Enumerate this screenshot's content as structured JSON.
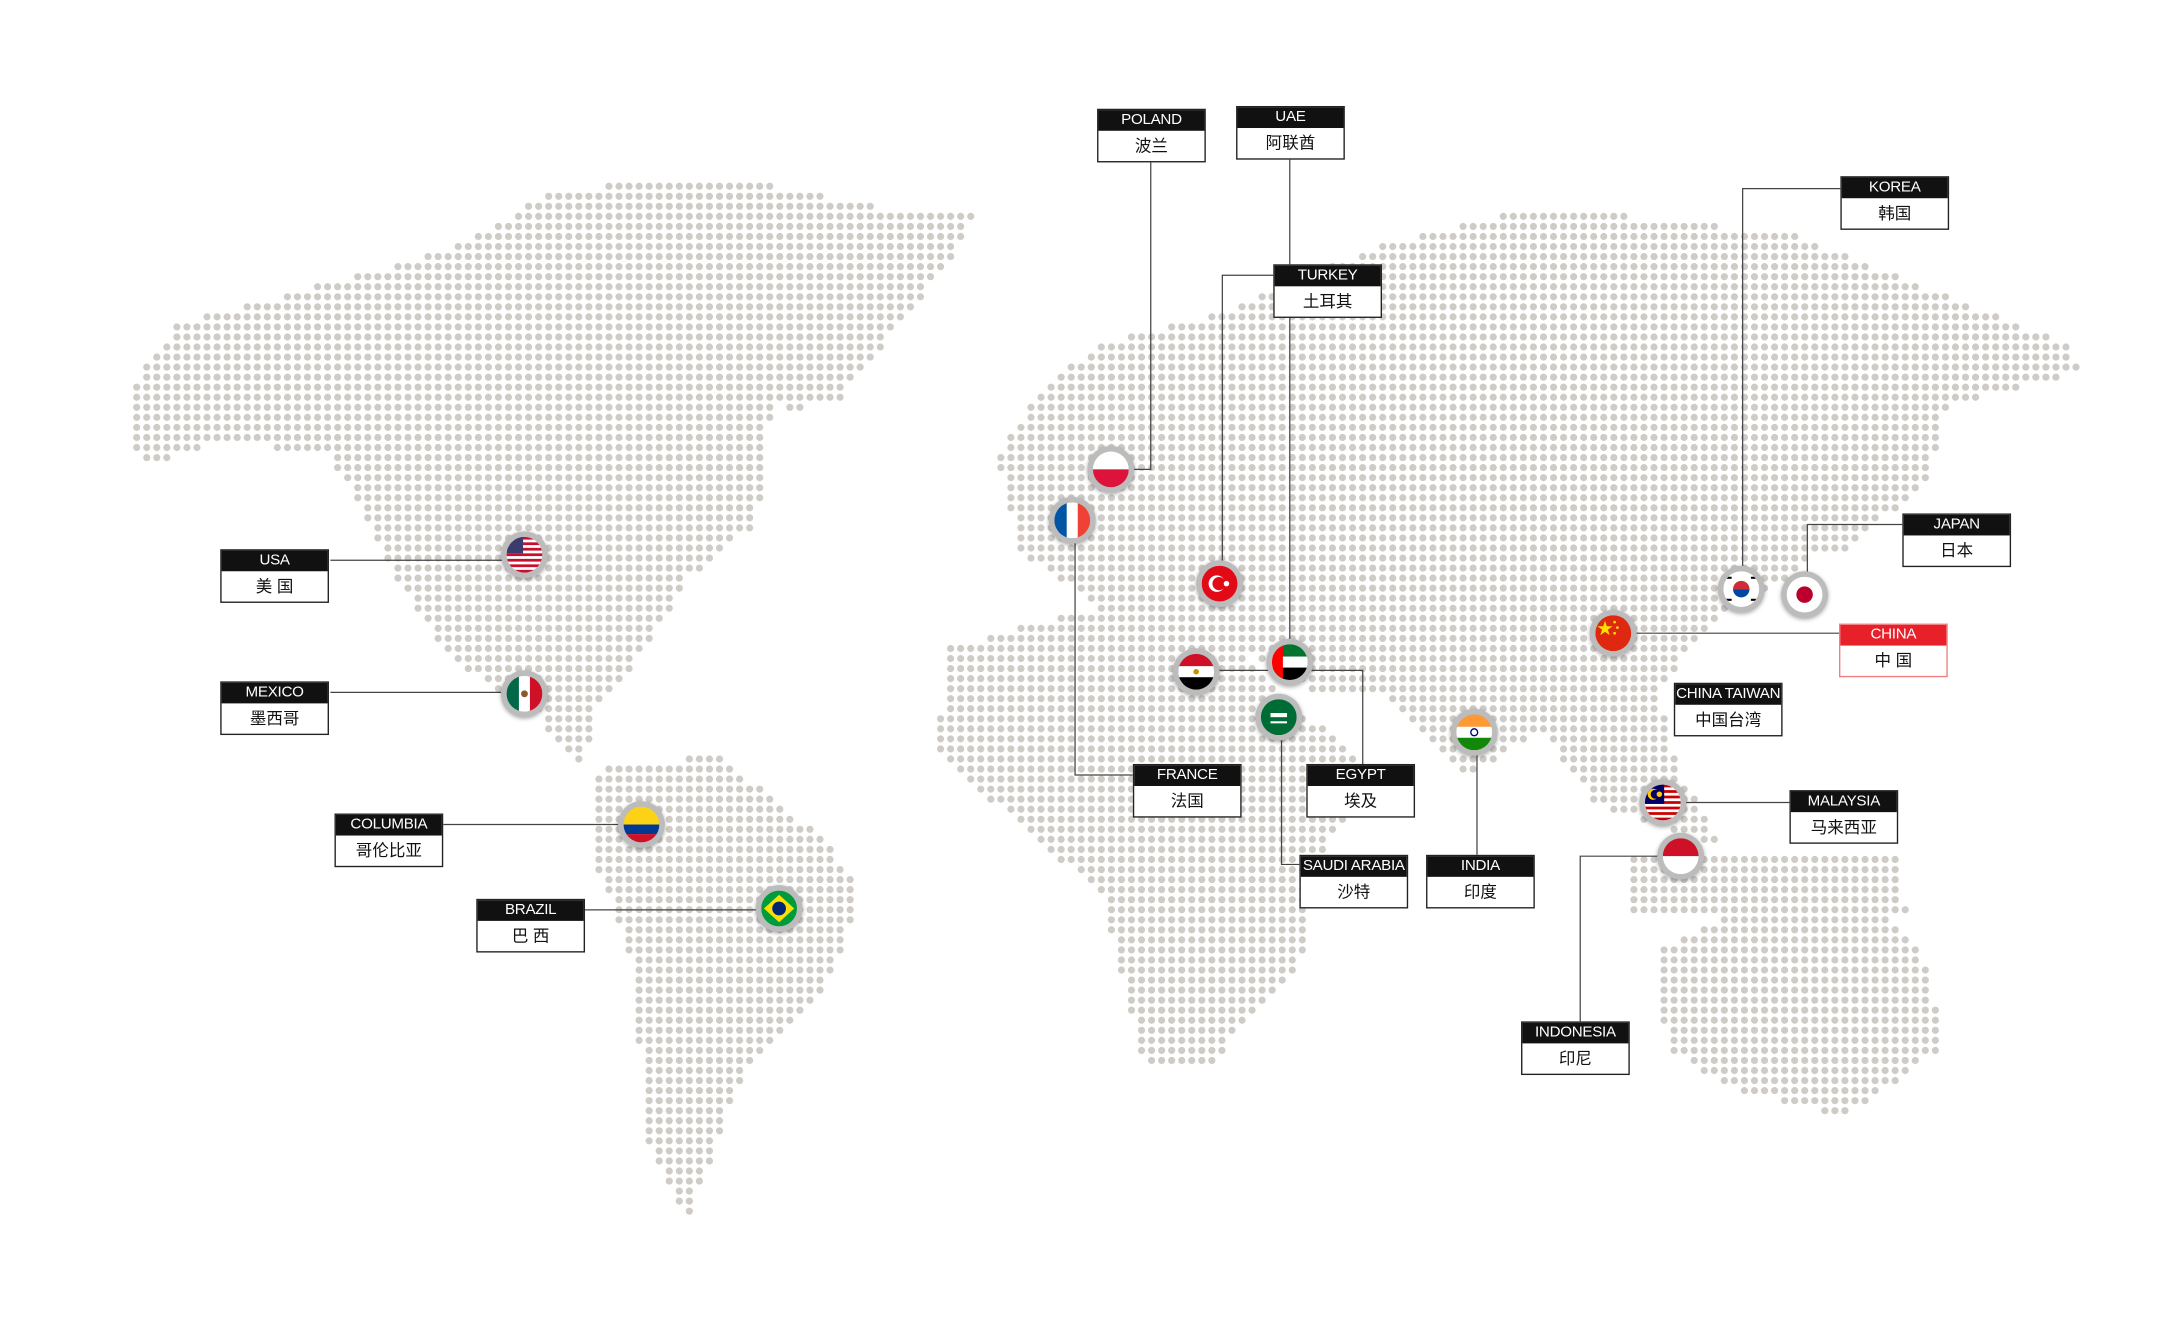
{
  "map": {
    "dot_color": "#cfccc8",
    "line_color": "#444444",
    "highlight_color": "#e8202a"
  },
  "locations": [
    {
      "id": "usa",
      "en": "USA",
      "zh": "美 国",
      "flag": "usa-flag-icon"
    },
    {
      "id": "mexico",
      "en": "MEXICO",
      "zh": "墨西哥",
      "flag": "mexico-flag-icon"
    },
    {
      "id": "columbia",
      "en": "COLUMBIA",
      "zh": "哥伦比亚",
      "flag": "colombia-flag-icon"
    },
    {
      "id": "brazil",
      "en": "BRAZIL",
      "zh": "巴 西",
      "flag": "brazil-flag-icon"
    },
    {
      "id": "poland",
      "en": "POLAND",
      "zh": "波兰",
      "flag": "poland-flag-icon"
    },
    {
      "id": "uae",
      "en": "UAE",
      "zh": "阿联酋",
      "flag": "uae-flag-icon"
    },
    {
      "id": "turkey",
      "en": "TURKEY",
      "zh": "土耳其",
      "flag": "turkey-flag-icon"
    },
    {
      "id": "korea",
      "en": "KOREA",
      "zh": "韩国",
      "flag": "korea-flag-icon"
    },
    {
      "id": "japan",
      "en": "JAPAN",
      "zh": "日本",
      "flag": "japan-flag-icon"
    },
    {
      "id": "china",
      "en": "CHINA",
      "zh": "中 国",
      "flag": "china-flag-icon",
      "highlight": true
    },
    {
      "id": "taiwan",
      "en": "CHINA TAIWAN",
      "zh": "中国台湾"
    },
    {
      "id": "malaysia",
      "en": "MALAYSIA",
      "zh": "马来西亚",
      "flag": "malaysia-flag-icon"
    },
    {
      "id": "indonesia",
      "en": "INDONESIA",
      "zh": "印尼",
      "flag": "indonesia-flag-icon"
    },
    {
      "id": "india",
      "en": "INDIA",
      "zh": "印度",
      "flag": "india-flag-icon"
    },
    {
      "id": "saudi",
      "en": "SAUDI ARABIA",
      "zh": "沙特",
      "flag": "saudi-arabia-flag-icon"
    },
    {
      "id": "egypt",
      "en": "EGYPT",
      "zh": "埃及",
      "flag": "egypt-flag-icon"
    },
    {
      "id": "france",
      "en": "FRANCE",
      "zh": "法国",
      "flag": "france-flag-icon"
    }
  ]
}
